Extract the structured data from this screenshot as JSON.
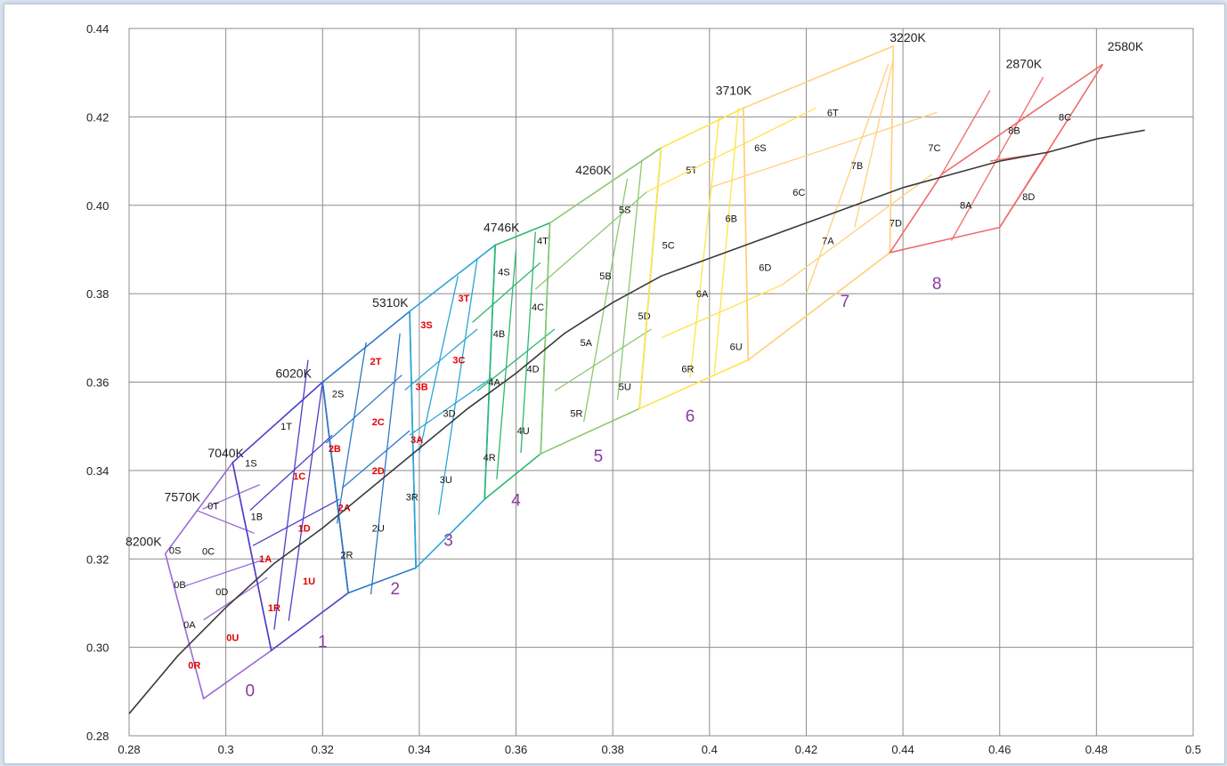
{
  "colors": {
    "grid": "#8c8c8c",
    "axis": "#8c8c8c",
    "locus": "#3a3a3a",
    "bin_label": "#111111",
    "bin_label_highlight": "#e00000",
    "group_label": "#8a3a9e"
  },
  "chart_data": {
    "type": "line",
    "title": "",
    "xlabel": "",
    "ylabel": "",
    "xlim": [
      0.28,
      0.5
    ],
    "ylim": [
      0.28,
      0.44
    ],
    "grid": true,
    "x_ticks": [
      "0.28",
      "0.3",
      "0.32",
      "0.34",
      "0.36",
      "0.38",
      "0.4",
      "0.42",
      "0.44",
      "0.46",
      "0.48",
      "0.5"
    ],
    "y_ticks": [
      "0.28",
      "0.30",
      "0.32",
      "0.34",
      "0.36",
      "0.38",
      "0.40",
      "0.42",
      "0.44"
    ],
    "locus": [
      [
        0.28,
        0.285
      ],
      [
        0.29,
        0.298
      ],
      [
        0.3,
        0.309
      ],
      [
        0.31,
        0.319
      ],
      [
        0.32,
        0.327
      ],
      [
        0.33,
        0.336
      ],
      [
        0.34,
        0.345
      ],
      [
        0.35,
        0.354
      ],
      [
        0.36,
        0.362
      ],
      [
        0.37,
        0.371
      ],
      [
        0.38,
        0.378
      ],
      [
        0.39,
        0.384
      ],
      [
        0.4,
        0.388
      ],
      [
        0.41,
        0.392
      ],
      [
        0.42,
        0.396
      ],
      [
        0.43,
        0.4
      ],
      [
        0.44,
        0.404
      ],
      [
        0.45,
        0.407
      ],
      [
        0.46,
        0.41
      ],
      [
        0.47,
        0.412
      ],
      [
        0.48,
        0.415
      ],
      [
        0.49,
        0.417
      ]
    ],
    "cct_labels": [
      {
        "text": "8200K",
        "x": 0.283,
        "y": 0.323
      },
      {
        "text": "7570K",
        "x": 0.291,
        "y": 0.333
      },
      {
        "text": "7040K",
        "x": 0.3,
        "y": 0.343
      },
      {
        "text": "6020K",
        "x": 0.314,
        "y": 0.361
      },
      {
        "text": "5310K",
        "x": 0.334,
        "y": 0.377
      },
      {
        "text": "4746K",
        "x": 0.357,
        "y": 0.394
      },
      {
        "text": "4260K",
        "x": 0.376,
        "y": 0.407
      },
      {
        "text": "3710K",
        "x": 0.405,
        "y": 0.425
      },
      {
        "text": "3220K",
        "x": 0.441,
        "y": 0.437
      },
      {
        "text": "2870K",
        "x": 0.465,
        "y": 0.431
      },
      {
        "text": "2580K",
        "x": 0.486,
        "y": 0.435
      }
    ],
    "groups": [
      {
        "label": "0",
        "x": 0.305,
        "y": 0.289,
        "color": "#9a6ad6",
        "outer": [
          [
            0.2875,
            0.3212
          ],
          [
            0.3014,
            0.3418
          ],
          [
            0.3094,
            0.2993
          ],
          [
            0.2954,
            0.2884
          ]
        ],
        "inner": [
          [
            [
              0.2954,
              0.3062
            ],
            [
              0.3086,
              0.3158
            ]
          ],
          [
            [
              0.2916,
              0.3139
            ],
            [
              0.3074,
              0.3197
            ]
          ],
          [
            [
              0.2939,
              0.331
            ],
            [
              0.3059,
              0.3258
            ]
          ],
          [
            [
              0.2952,
              0.3313
            ],
            [
              0.307,
              0.3368
            ]
          ]
        ],
        "bins": [
          {
            "t": "0S",
            "x": 0.2895,
            "y": 0.3212
          },
          {
            "t": "0T",
            "x": 0.2974,
            "y": 0.3312
          },
          {
            "t": "0B",
            "x": 0.2905,
            "y": 0.3134
          },
          {
            "t": "0C",
            "x": 0.2964,
            "y": 0.321
          },
          {
            "t": "0A",
            "x": 0.2925,
            "y": 0.3044
          },
          {
            "t": "0D",
            "x": 0.2992,
            "y": 0.3118
          },
          {
            "t": "0R",
            "x": 0.2935,
            "y": 0.2952,
            "red": true
          },
          {
            "t": "0U",
            "x": 0.3014,
            "y": 0.3014,
            "red": true
          }
        ]
      },
      {
        "label": "1",
        "x": 0.32,
        "y": 0.3,
        "color": "#4c3fc8",
        "outer": [
          [
            0.3014,
            0.3418
          ],
          [
            0.32,
            0.36
          ],
          [
            0.3253,
            0.3123
          ],
          [
            0.3094,
            0.2993
          ]
        ],
        "inner": [
          [
            [
              0.3056,
              0.323
            ],
            [
              0.3235,
              0.3335
            ]
          ],
          [
            [
              0.31,
              0.304
            ],
            [
              0.317,
              0.365
            ]
          ],
          [
            [
              0.305,
              0.331
            ],
            [
              0.322,
              0.348
            ]
          ],
          [
            [
              0.313,
              0.306
            ],
            [
              0.32,
              0.36
            ]
          ]
        ],
        "bins": [
          {
            "t": "1S",
            "x": 0.3052,
            "y": 0.3409
          },
          {
            "t": "1T",
            "x": 0.3125,
            "y": 0.3492
          },
          {
            "t": "1B",
            "x": 0.3064,
            "y": 0.3288
          },
          {
            "t": "1C",
            "x": 0.3152,
            "y": 0.338,
            "red": true
          },
          {
            "t": "1A",
            "x": 0.3082,
            "y": 0.3192,
            "red": true
          },
          {
            "t": "1D",
            "x": 0.3162,
            "y": 0.3262,
            "red": true
          },
          {
            "t": "1R",
            "x": 0.31,
            "y": 0.3082,
            "red": true
          },
          {
            "t": "1U",
            "x": 0.3172,
            "y": 0.3142,
            "red": true
          }
        ]
      },
      {
        "label": "2",
        "x": 0.335,
        "y": 0.312,
        "color": "#2d78c8",
        "outer": [
          [
            0.32,
            0.36
          ],
          [
            0.338,
            0.376
          ],
          [
            0.3393,
            0.318
          ],
          [
            0.3253,
            0.3123
          ]
        ],
        "inner": [
          [
            [
              0.3207,
              0.3462
            ],
            [
              0.3364,
              0.3616
            ]
          ],
          [
            [
              0.323,
              0.328
            ],
            [
              0.329,
              0.369
            ]
          ],
          [
            [
              0.324,
              0.336
            ],
            [
              0.338,
              0.349
            ]
          ],
          [
            [
              0.33,
              0.312
            ],
            [
              0.336,
              0.371
            ]
          ]
        ],
        "bins": [
          {
            "t": "2S",
            "x": 0.3232,
            "y": 0.3566
          },
          {
            "t": "2T",
            "x": 0.331,
            "y": 0.3639,
            "red": true
          },
          {
            "t": "2B",
            "x": 0.3225,
            "y": 0.3442,
            "red": true
          },
          {
            "t": "2C",
            "x": 0.3315,
            "y": 0.3502,
            "red": true
          },
          {
            "t": "2A",
            "x": 0.3245,
            "y": 0.3308,
            "red": true
          },
          {
            "t": "2D",
            "x": 0.3315,
            "y": 0.3392,
            "red": true
          },
          {
            "t": "2R",
            "x": 0.325,
            "y": 0.3202
          },
          {
            "t": "2U",
            "x": 0.3315,
            "y": 0.3262
          }
        ]
      },
      {
        "label": "3",
        "x": 0.346,
        "y": 0.323,
        "color": "#2aa6d8",
        "outer": [
          [
            0.338,
            0.376
          ],
          [
            0.3557,
            0.391
          ],
          [
            0.3535,
            0.3335
          ],
          [
            0.3393,
            0.318
          ]
        ],
        "inner": [
          [
            [
              0.337,
              0.3582
            ],
            [
              0.352,
              0.372
            ]
          ],
          [
            [
              0.34,
              0.344
            ],
            [
              0.348,
              0.384
            ]
          ],
          [
            [
              0.338,
              0.348
            ],
            [
              0.355,
              0.361
            ]
          ],
          [
            [
              0.344,
              0.33
            ],
            [
              0.352,
              0.388
            ]
          ]
        ],
        "bins": [
          {
            "t": "3S",
            "x": 0.3415,
            "y": 0.3722,
            "red": true
          },
          {
            "t": "3T",
            "x": 0.3492,
            "y": 0.3782,
            "red": true
          },
          {
            "t": "3B",
            "x": 0.3405,
            "y": 0.3582,
            "red": true
          },
          {
            "t": "3C",
            "x": 0.3482,
            "y": 0.3642,
            "red": true
          },
          {
            "t": "3A",
            "x": 0.3395,
            "y": 0.3462,
            "red": true
          },
          {
            "t": "3D",
            "x": 0.3462,
            "y": 0.3522
          },
          {
            "t": "3R",
            "x": 0.3385,
            "y": 0.3332
          },
          {
            "t": "3U",
            "x": 0.3455,
            "y": 0.3372
          }
        ]
      },
      {
        "label": "4",
        "x": 0.36,
        "y": 0.332,
        "color": "#2db870",
        "outer": [
          [
            0.3557,
            0.391
          ],
          [
            0.367,
            0.396
          ],
          [
            0.3651,
            0.3438
          ],
          [
            0.3535,
            0.3335
          ]
        ],
        "inner": [
          [
            [
              0.351,
              0.3735
            ],
            [
              0.365,
              0.387
            ]
          ],
          [
            [
              0.356,
              0.338
            ],
            [
              0.36,
              0.39
            ]
          ],
          [
            [
              0.352,
              0.358
            ],
            [
              0.368,
              0.372
            ]
          ],
          [
            [
              0.361,
              0.344
            ],
            [
              0.364,
              0.394
            ]
          ]
        ],
        "bins": [
          {
            "t": "4S",
            "x": 0.3575,
            "y": 0.3842
          },
          {
            "t": "4T",
            "x": 0.3655,
            "y": 0.3912
          },
          {
            "t": "4B",
            "x": 0.3565,
            "y": 0.3702
          },
          {
            "t": "4C",
            "x": 0.3645,
            "y": 0.3762
          },
          {
            "t": "4A",
            "x": 0.3555,
            "y": 0.3592
          },
          {
            "t": "4D",
            "x": 0.3635,
            "y": 0.3622
          },
          {
            "t": "4R",
            "x": 0.3545,
            "y": 0.3422
          },
          {
            "t": "4U",
            "x": 0.3615,
            "y": 0.3482
          }
        ]
      },
      {
        "label": "5",
        "x": 0.377,
        "y": 0.342,
        "color": "#8cc870",
        "outer": [
          [
            0.367,
            0.396
          ],
          [
            0.39,
            0.413
          ],
          [
            0.3855,
            0.354
          ],
          [
            0.3651,
            0.3438
          ]
        ],
        "inner": [
          [
            [
              0.364,
              0.381
            ],
            [
              0.387,
              0.403
            ]
          ],
          [
            [
              0.374,
              0.351
            ],
            [
              0.383,
              0.406
            ]
          ],
          [
            [
              0.368,
              0.358
            ],
            [
              0.388,
              0.372
            ]
          ],
          [
            [
              0.381,
              0.356
            ],
            [
              0.386,
              0.41
            ]
          ]
        ],
        "bins": [
          {
            "t": "5S",
            "x": 0.3825,
            "y": 0.3982
          },
          {
            "t": "5T",
            "x": 0.3963,
            "y": 0.4072
          },
          {
            "t": "5B",
            "x": 0.3785,
            "y": 0.3832
          },
          {
            "t": "5C",
            "x": 0.3915,
            "y": 0.3902
          },
          {
            "t": "5A",
            "x": 0.3745,
            "y": 0.3682
          },
          {
            "t": "5D",
            "x": 0.3865,
            "y": 0.3742
          },
          {
            "t": "5R",
            "x": 0.3725,
            "y": 0.3522
          },
          {
            "t": "5U",
            "x": 0.3825,
            "y": 0.3582
          }
        ]
      },
      {
        "label": "6",
        "x": 0.396,
        "y": 0.351,
        "color": "#ffe34a",
        "outer": [
          [
            0.39,
            0.413
          ],
          [
            0.407,
            0.422
          ],
          [
            0.408,
            0.365
          ],
          [
            0.3855,
            0.354
          ]
        ],
        "inner": [
          [
            [
              0.387,
              0.403
            ],
            [
              0.422,
              0.422
            ]
          ],
          [
            [
              0.396,
              0.361
            ],
            [
              0.402,
              0.42
            ]
          ],
          [
            [
              0.39,
              0.37
            ],
            [
              0.415,
              0.382
            ]
          ],
          [
            [
              0.401,
              0.362
            ],
            [
              0.406,
              0.422
            ]
          ]
        ],
        "bins": [
          {
            "t": "6S",
            "x": 0.4105,
            "y": 0.4122
          },
          {
            "t": "6T",
            "x": 0.4255,
            "y": 0.4202
          },
          {
            "t": "6B",
            "x": 0.4045,
            "y": 0.3962
          },
          {
            "t": "6C",
            "x": 0.4185,
            "y": 0.4022
          },
          {
            "t": "6A",
            "x": 0.3985,
            "y": 0.3792
          },
          {
            "t": "6D",
            "x": 0.4115,
            "y": 0.3852
          },
          {
            "t": "6R",
            "x": 0.3955,
            "y": 0.3622
          },
          {
            "t": "6U",
            "x": 0.4055,
            "y": 0.3672
          }
        ]
      },
      {
        "label": "7",
        "x": 0.428,
        "y": 0.377,
        "color": "#ffd07a",
        "outer": [
          [
            0.407,
            0.422
          ],
          [
            0.438,
            0.436
          ],
          [
            0.4373,
            0.3893
          ],
          [
            0.408,
            0.365
          ]
        ],
        "inner": [
          [
            [
              0.4,
              0.404
            ],
            [
              0.447,
              0.421
            ]
          ],
          [
            [
              0.42,
              0.38
            ],
            [
              0.437,
              0.432
            ]
          ],
          [
            [
              0.415,
              0.382
            ],
            [
              0.446,
              0.407
            ]
          ],
          [
            [
              0.43,
              0.395
            ],
            [
              0.438,
              0.433
            ]
          ]
        ],
        "bins": [
          {
            "t": "7B",
            "x": 0.4305,
            "y": 0.4082
          },
          {
            "t": "7C",
            "x": 0.4465,
            "y": 0.4122
          },
          {
            "t": "7A",
            "x": 0.4245,
            "y": 0.3912
          },
          {
            "t": "7D",
            "x": 0.4385,
            "y": 0.3952
          }
        ]
      },
      {
        "label": "8",
        "x": 0.447,
        "y": 0.381,
        "color": "#ef6a6a",
        "outer": [
          [
            0.4373,
            0.3893
          ],
          [
            0.448,
            0.407
          ],
          [
            0.4813,
            0.4319
          ],
          [
            0.46,
            0.395
          ]
        ],
        "inner": [
          [
            [
              0.448,
              0.407
            ],
            [
              0.458,
              0.426
            ]
          ],
          [
            [
              0.45,
              0.392
            ],
            [
              0.469,
              0.429
            ]
          ],
          [
            [
              0.46,
              0.395
            ],
            [
              0.47,
              0.412
            ]
          ],
          [
            [
              0.458,
              0.41
            ],
            [
              0.47,
              0.412
            ]
          ]
        ],
        "bins": [
          {
            "t": "8A",
            "x": 0.453,
            "y": 0.3992
          },
          {
            "t": "8B",
            "x": 0.463,
            "y": 0.4162
          },
          {
            "t": "8C",
            "x": 0.4735,
            "y": 0.4192
          },
          {
            "t": "8D",
            "x": 0.466,
            "y": 0.4012
          }
        ]
      }
    ]
  }
}
